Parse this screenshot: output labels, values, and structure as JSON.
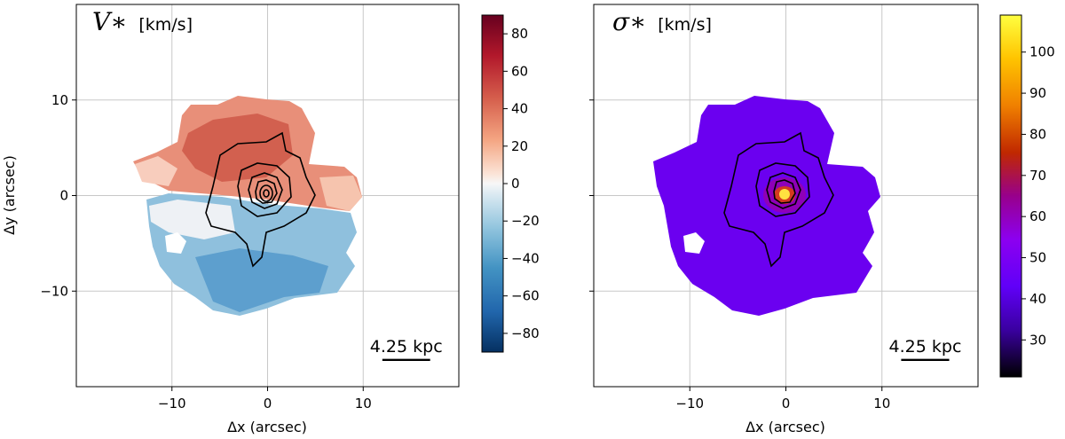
{
  "chart_data": [
    {
      "type": "map",
      "id": "velocity",
      "title_symbol": "V∗",
      "title_unit": "[km/s]",
      "xlabel": "Δx (arcsec)",
      "ylabel": "Δy (arcsec)",
      "xlim": [
        -20,
        20
      ],
      "ylim": [
        -20,
        20
      ],
      "xticks": [
        -10,
        0,
        10
      ],
      "yticks": [
        10,
        0,
        -10
      ],
      "xtick_labels": [
        "−10",
        "0",
        "10"
      ],
      "ytick_labels": [
        "10",
        "0",
        "−10"
      ],
      "grid": true,
      "colormap": "RdBu_r",
      "colorbar_range": [
        -90,
        90
      ],
      "colorbar_ticks": [
        80,
        60,
        40,
        20,
        0,
        -20,
        -40,
        -60,
        -80
      ],
      "colorbar_tick_labels": [
        "80",
        "60",
        "40",
        "20",
        "0",
        "−20",
        "−40",
        "−60",
        "−80"
      ],
      "scale_bar_label": "4.25 kpc",
      "scale_bar_range": [
        12,
        17
      ],
      "scale_bar_y": -17.2
    },
    {
      "type": "map",
      "id": "dispersion",
      "title_symbol": "σ∗",
      "title_unit": "[km/s]",
      "xlabel": "Δx (arcsec)",
      "ylabel": "",
      "xlim": [
        -20,
        20
      ],
      "ylim": [
        -20,
        20
      ],
      "xticks": [
        -10,
        0,
        10
      ],
      "yticks": [
        10,
        0,
        -10
      ],
      "xtick_labels": [
        "−10",
        "0",
        "10"
      ],
      "ytick_labels": [],
      "grid": true,
      "colormap": "gnuplot",
      "colorbar_range": [
        21,
        109
      ],
      "colorbar_ticks": [
        100,
        90,
        80,
        70,
        60,
        50,
        40,
        30
      ],
      "colorbar_tick_labels": [
        "100",
        "90",
        "80",
        "70",
        "60",
        "50",
        "40",
        "30"
      ],
      "scale_bar_label": "4.25 kpc",
      "scale_bar_range": [
        12,
        17
      ],
      "scale_bar_y": -17.2
    }
  ]
}
